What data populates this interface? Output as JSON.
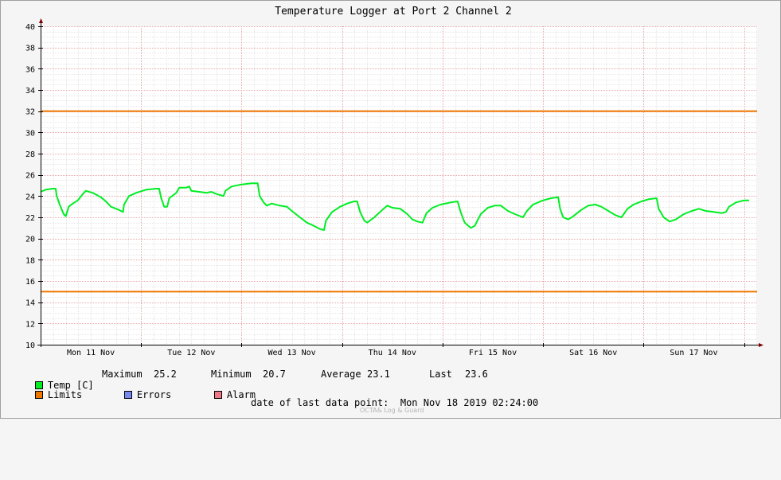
{
  "chart_data": {
    "type": "line",
    "title": "Temperature Logger at Port 2 Channel 2",
    "ylim": [
      10,
      40
    ],
    "y_ticks": [
      10,
      12,
      14,
      16,
      18,
      20,
      22,
      24,
      26,
      28,
      30,
      32,
      34,
      36,
      38,
      40
    ],
    "x_tick_labels": [
      "Mon 11 Nov",
      "Tue 12 Nov",
      "Wed 13 Nov",
      "Thu 14 Nov",
      "Fri 15 Nov",
      "Sat 16 Nov",
      "Sun 17 Nov"
    ],
    "x_range_days": [
      0,
      7.13
    ],
    "grid": true,
    "limits": [
      {
        "name": "Limits",
        "value": 32,
        "color": "#ee7700"
      },
      {
        "name": "Limits",
        "value": 15,
        "color": "#ee7700"
      }
    ],
    "series": [
      {
        "name": "Temp [C]",
        "color": "#00ee22",
        "points": [
          [
            0.0,
            24.4
          ],
          [
            0.05,
            24.6
          ],
          [
            0.12,
            24.7
          ],
          [
            0.15,
            24.7
          ],
          [
            0.16,
            24.0
          ],
          [
            0.19,
            23.2
          ],
          [
            0.23,
            22.3
          ],
          [
            0.25,
            22.1
          ],
          [
            0.28,
            23.0
          ],
          [
            0.32,
            23.3
          ],
          [
            0.37,
            23.6
          ],
          [
            0.42,
            24.2
          ],
          [
            0.45,
            24.5
          ],
          [
            0.52,
            24.3
          ],
          [
            0.6,
            23.9
          ],
          [
            0.65,
            23.5
          ],
          [
            0.7,
            23.0
          ],
          [
            0.78,
            22.7
          ],
          [
            0.82,
            22.5
          ],
          [
            0.83,
            23.2
          ],
          [
            0.88,
            24.0
          ],
          [
            0.95,
            24.3
          ],
          [
            1.05,
            24.6
          ],
          [
            1.15,
            24.7
          ],
          [
            1.18,
            24.7
          ],
          [
            1.2,
            23.8
          ],
          [
            1.23,
            23.0
          ],
          [
            1.26,
            23.0
          ],
          [
            1.28,
            23.8
          ],
          [
            1.35,
            24.3
          ],
          [
            1.38,
            24.8
          ],
          [
            1.45,
            24.8
          ],
          [
            1.48,
            24.9
          ],
          [
            1.5,
            24.5
          ],
          [
            1.58,
            24.4
          ],
          [
            1.65,
            24.3
          ],
          [
            1.7,
            24.4
          ],
          [
            1.75,
            24.2
          ],
          [
            1.82,
            24.0
          ],
          [
            1.84,
            24.5
          ],
          [
            1.9,
            24.9
          ],
          [
            2.0,
            25.1
          ],
          [
            2.1,
            25.2
          ],
          [
            2.16,
            25.2
          ],
          [
            2.18,
            24.0
          ],
          [
            2.22,
            23.4
          ],
          [
            2.25,
            23.1
          ],
          [
            2.3,
            23.3
          ],
          [
            2.38,
            23.1
          ],
          [
            2.45,
            23.0
          ],
          [
            2.5,
            22.6
          ],
          [
            2.58,
            22.0
          ],
          [
            2.65,
            21.5
          ],
          [
            2.72,
            21.2
          ],
          [
            2.78,
            20.9
          ],
          [
            2.82,
            20.8
          ],
          [
            2.84,
            21.7
          ],
          [
            2.9,
            22.5
          ],
          [
            2.98,
            23.0
          ],
          [
            3.05,
            23.3
          ],
          [
            3.12,
            23.5
          ],
          [
            3.15,
            23.5
          ],
          [
            3.18,
            22.5
          ],
          [
            3.22,
            21.7
          ],
          [
            3.25,
            21.5
          ],
          [
            3.32,
            22.0
          ],
          [
            3.4,
            22.7
          ],
          [
            3.45,
            23.1
          ],
          [
            3.5,
            22.9
          ],
          [
            3.58,
            22.8
          ],
          [
            3.65,
            22.3
          ],
          [
            3.7,
            21.8
          ],
          [
            3.75,
            21.6
          ],
          [
            3.8,
            21.5
          ],
          [
            3.84,
            22.4
          ],
          [
            3.9,
            22.9
          ],
          [
            3.98,
            23.2
          ],
          [
            4.08,
            23.4
          ],
          [
            4.15,
            23.5
          ],
          [
            4.18,
            22.5
          ],
          [
            4.22,
            21.5
          ],
          [
            4.28,
            21.0
          ],
          [
            4.32,
            21.2
          ],
          [
            4.38,
            22.3
          ],
          [
            4.45,
            22.9
          ],
          [
            4.52,
            23.1
          ],
          [
            4.58,
            23.1
          ],
          [
            4.65,
            22.6
          ],
          [
            4.72,
            22.3
          ],
          [
            4.8,
            22.0
          ],
          [
            4.84,
            22.6
          ],
          [
            4.9,
            23.2
          ],
          [
            5.0,
            23.6
          ],
          [
            5.08,
            23.8
          ],
          [
            5.15,
            23.9
          ],
          [
            5.17,
            22.8
          ],
          [
            5.2,
            22.0
          ],
          [
            5.25,
            21.8
          ],
          [
            5.3,
            22.1
          ],
          [
            5.38,
            22.7
          ],
          [
            5.45,
            23.1
          ],
          [
            5.52,
            23.2
          ],
          [
            5.58,
            23.0
          ],
          [
            5.65,
            22.6
          ],
          [
            5.72,
            22.2
          ],
          [
            5.78,
            22.0
          ],
          [
            5.84,
            22.8
          ],
          [
            5.9,
            23.2
          ],
          [
            5.98,
            23.5
          ],
          [
            6.05,
            23.7
          ],
          [
            6.13,
            23.8
          ],
          [
            6.15,
            22.8
          ],
          [
            6.2,
            22.0
          ],
          [
            6.26,
            21.6
          ],
          [
            6.32,
            21.8
          ],
          [
            6.4,
            22.3
          ],
          [
            6.48,
            22.6
          ],
          [
            6.55,
            22.8
          ],
          [
            6.62,
            22.6
          ],
          [
            6.7,
            22.5
          ],
          [
            6.78,
            22.4
          ],
          [
            6.82,
            22.5
          ],
          [
            6.85,
            23.0
          ],
          [
            6.92,
            23.4
          ],
          [
            7.0,
            23.6
          ],
          [
            7.05,
            23.6
          ]
        ]
      }
    ]
  },
  "legend": {
    "temp_label": "Temp [C]",
    "temp_color": "#00ee22",
    "max_label": "Maximum",
    "max_value": "25.2",
    "min_label": "Minimum",
    "min_value": "20.7",
    "avg_label": "Average",
    "avg_value": "23.1",
    "last_label": "Last",
    "last_value": "23.6",
    "limits_label": "Limits",
    "limits_color": "#ee7700",
    "errors_label": "Errors",
    "errors_color": "#7788ee",
    "alarm_label": "Alarm",
    "alarm_color": "#ee7788"
  },
  "footer": {
    "last_point": "date of last data point:  Mon Nov 18 2019 02:24:00",
    "watermark": "OCTA& Log & Guard"
  }
}
